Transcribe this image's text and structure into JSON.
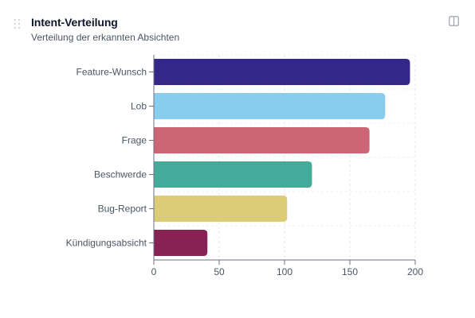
{
  "card": {
    "title": "Intent-Verteilung",
    "subtitle": "Verteilung der erkannten Absichten",
    "drag_icon": "drag-handle-icon",
    "expand_icon": "expand-icon"
  },
  "chart_data": {
    "type": "bar",
    "orientation": "horizontal",
    "categories": [
      "Feature-Wunsch",
      "Lob",
      "Frage",
      "Beschwerde",
      "Bug-Report",
      "Kündigungsabsicht"
    ],
    "values": [
      196,
      177,
      165,
      121,
      102,
      41
    ],
    "colors": [
      "#33288a",
      "#88ccee",
      "#cc6677",
      "#44aa99",
      "#ddcc77",
      "#882255"
    ],
    "xlim": [
      0,
      200
    ],
    "xticks": [
      "0",
      "50",
      "100",
      "150",
      "200"
    ],
    "grid": true,
    "xlabel": "",
    "ylabel": ""
  }
}
